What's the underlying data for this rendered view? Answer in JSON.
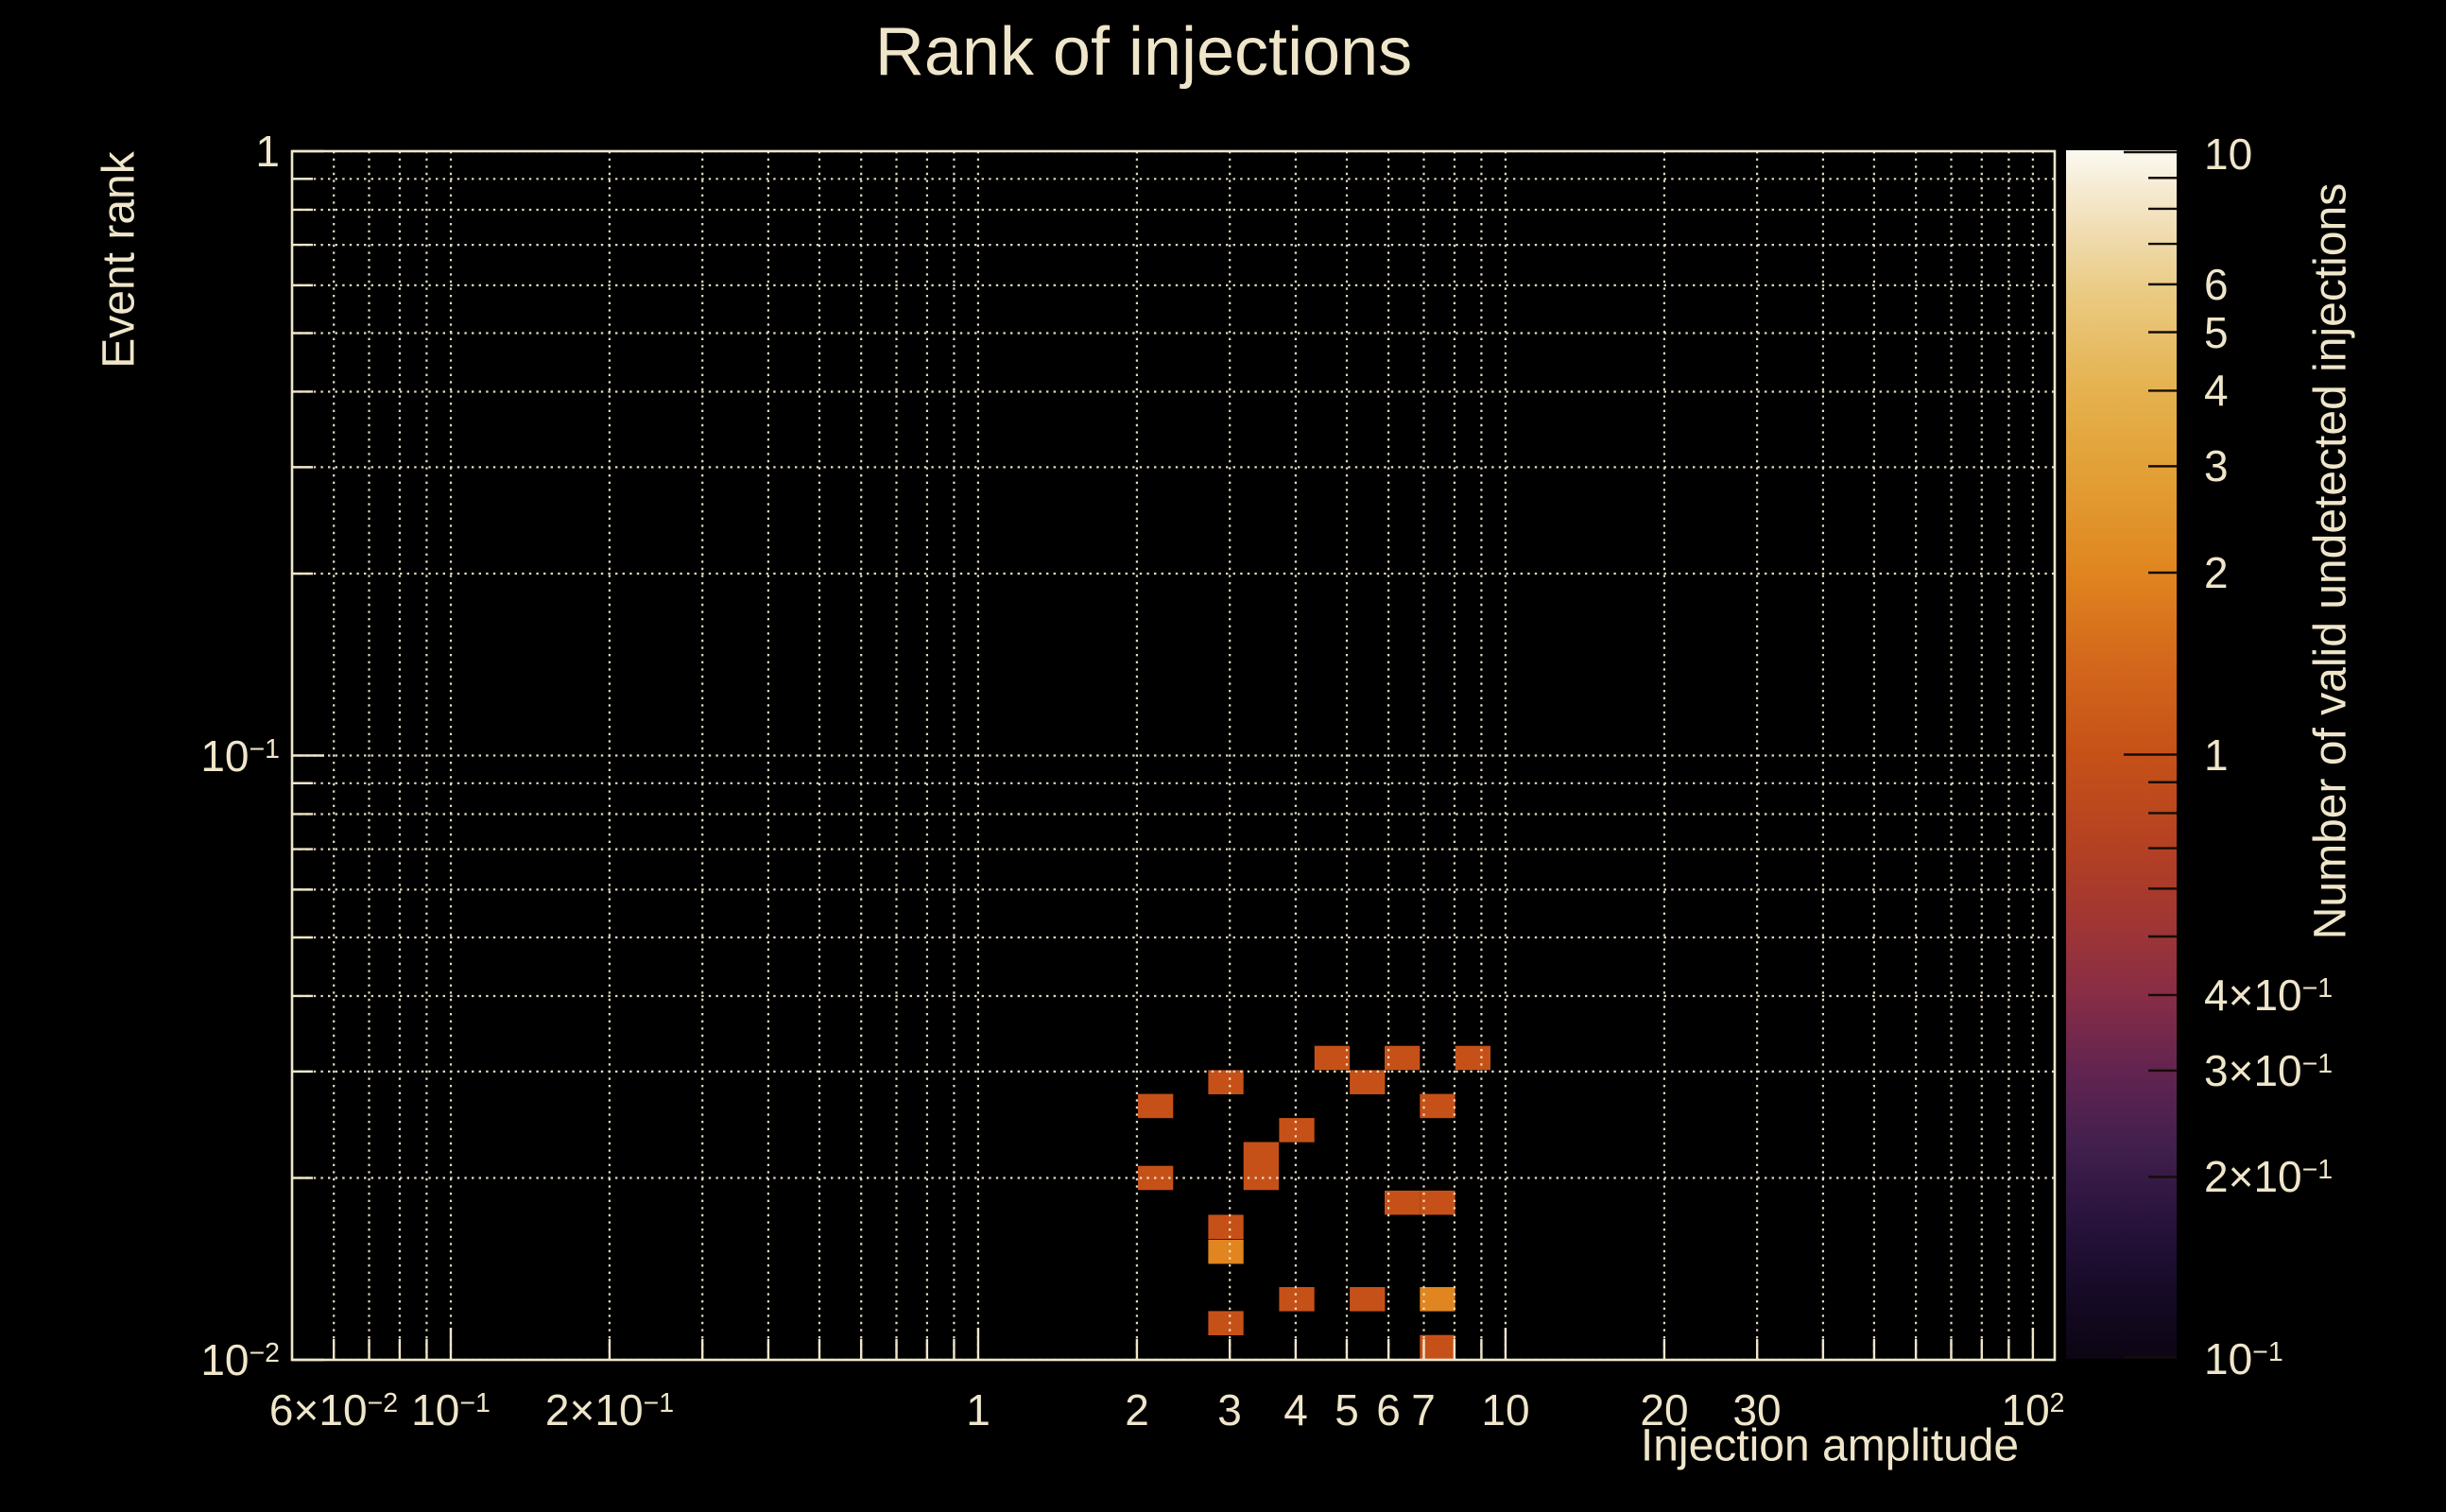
{
  "figure": {
    "background_color": "#000000",
    "text_color": "#efe6ca",
    "grid_color": "#efe6ca",
    "frame_color": "#efe6ca"
  },
  "chart_data": {
    "type": "heatmap",
    "title": "Rank of injections",
    "xlabel": "Injection amplitude",
    "ylabel": "Event rank",
    "colorbar_label": "Number of valid undetected injections",
    "xscale": "log",
    "yscale": "log",
    "zscale": "log",
    "xlim": [
      0.05,
      110
    ],
    "ylim": [
      0.01,
      1
    ],
    "zlim": [
      0.1,
      10
    ],
    "grid": "dotted major+minor on both axes, drawn above cells",
    "legend_position": "colorbar right",
    "x_bin_dex": 0.06685,
    "y_bin_dex": 0.04,
    "x_ticks": [
      {
        "v": 0.06,
        "label": "6×10^-2"
      },
      {
        "v": 0.1,
        "label": "10^-1"
      },
      {
        "v": 0.2,
        "label": "2×10^-1"
      },
      {
        "v": 1,
        "label": "1"
      },
      {
        "v": 2,
        "label": "2"
      },
      {
        "v": 3,
        "label": "3"
      },
      {
        "v": 4,
        "label": "4"
      },
      {
        "v": 5,
        "label": "5"
      },
      {
        "v": 6,
        "label": "6"
      },
      {
        "v": 7,
        "label": "7"
      },
      {
        "v": 10,
        "label": "10"
      },
      {
        "v": 20,
        "label": "20"
      },
      {
        "v": 30,
        "label": "30"
      },
      {
        "v": 100,
        "label": "10^2"
      }
    ],
    "y_ticks": [
      {
        "v": 1,
        "label": "1"
      },
      {
        "v": 0.1,
        "label": "10^-1"
      },
      {
        "v": 0.01,
        "label": "10^-2"
      }
    ],
    "colorbar_ticks": [
      {
        "v": 10,
        "label": "10"
      },
      {
        "v": 6,
        "label": "6"
      },
      {
        "v": 5,
        "label": "5"
      },
      {
        "v": 4,
        "label": "4"
      },
      {
        "v": 3,
        "label": "3"
      },
      {
        "v": 2,
        "label": "2"
      },
      {
        "v": 1,
        "label": "1"
      },
      {
        "v": 0.4,
        "label": "4×10^-1"
      },
      {
        "v": 0.3,
        "label": "3×10^-1"
      },
      {
        "v": 0.2,
        "label": "2×10^-1"
      },
      {
        "v": 0.1,
        "label": "10^-1"
      }
    ],
    "colormap_stops": [
      [
        0.0,
        "#0c0513"
      ],
      [
        0.06,
        "#170b28"
      ],
      [
        0.12,
        "#2a143e"
      ],
      [
        0.18,
        "#44204e"
      ],
      [
        0.24,
        "#632450"
      ],
      [
        0.3,
        "#872d46"
      ],
      [
        0.36,
        "#a03634"
      ],
      [
        0.42,
        "#b34023"
      ],
      [
        0.5,
        "#c65118"
      ],
      [
        0.58,
        "#d4691c"
      ],
      [
        0.65,
        "#e0851f"
      ],
      [
        0.73,
        "#e29f35"
      ],
      [
        0.8,
        "#e5b14e"
      ],
      [
        0.88,
        "#eaca81"
      ],
      [
        0.94,
        "#f1dfb8"
      ],
      [
        1.0,
        "#fbf9f0"
      ]
    ],
    "cells": [
      {
        "x": 4.69,
        "y": 0.0316,
        "count": 1
      },
      {
        "x": 6.37,
        "y": 0.0316,
        "count": 1
      },
      {
        "x": 8.67,
        "y": 0.0316,
        "count": 1
      },
      {
        "x": 2.95,
        "y": 0.0288,
        "count": 1
      },
      {
        "x": 5.47,
        "y": 0.0288,
        "count": 1
      },
      {
        "x": 2.17,
        "y": 0.0263,
        "count": 1
      },
      {
        "x": 7.43,
        "y": 0.0263,
        "count": 1
      },
      {
        "x": 4.02,
        "y": 0.024,
        "count": 1
      },
      {
        "x": 3.44,
        "y": 0.0219,
        "count": 1
      },
      {
        "x": 2.17,
        "y": 0.02,
        "count": 1
      },
      {
        "x": 3.44,
        "y": 0.02,
        "count": 1
      },
      {
        "x": 6.37,
        "y": 0.0182,
        "count": 1
      },
      {
        "x": 7.43,
        "y": 0.0182,
        "count": 1
      },
      {
        "x": 2.95,
        "y": 0.0166,
        "count": 1
      },
      {
        "x": 2.95,
        "y": 0.0151,
        "count": 2
      },
      {
        "x": 4.02,
        "y": 0.0126,
        "count": 1
      },
      {
        "x": 5.47,
        "y": 0.0126,
        "count": 1
      },
      {
        "x": 7.43,
        "y": 0.0126,
        "count": 2
      },
      {
        "x": 2.95,
        "y": 0.0115,
        "count": 1
      },
      {
        "x": 7.43,
        "y": 0.0105,
        "count": 1
      }
    ]
  }
}
